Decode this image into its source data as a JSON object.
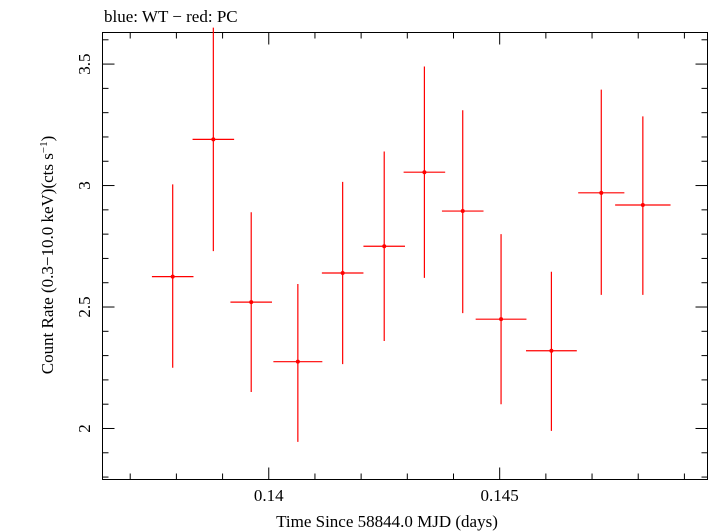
{
  "chart_data": {
    "type": "scatter",
    "title": "blue: WT − red: PC",
    "xlabel": "Time Since 58844.0 MJD (days)",
    "ylabel_main": "Count Rate (0.3−10.0 keV)(cts s",
    "ylabel_sup": "−1",
    "ylabel_close": ")",
    "xlim": [
      0.1364,
      0.1495
    ],
    "ylim": [
      1.79,
      3.63
    ],
    "x_ticks": [
      {
        "value": 0.14,
        "label": "0.14"
      },
      {
        "value": 0.145,
        "label": "0.145"
      }
    ],
    "x_minor_step": 0.001,
    "y_ticks": [
      {
        "value": 2.0,
        "label": "2"
      },
      {
        "value": 2.5,
        "label": "2.5"
      },
      {
        "value": 3.0,
        "label": "3"
      },
      {
        "value": 3.5,
        "label": "3.5"
      }
    ],
    "y_minor_step": 0.1,
    "series": [
      {
        "name": "PC",
        "color": "#ff0000",
        "points": [
          {
            "x": 0.13792,
            "xerr": 0.00045,
            "y": 2.625,
            "ylo": 2.25,
            "yhi": 3.005
          },
          {
            "x": 0.1388,
            "xerr": 0.00045,
            "y": 3.19,
            "ylo": 2.73,
            "yhi": 3.65
          },
          {
            "x": 0.13962,
            "xerr": 0.00045,
            "y": 2.52,
            "ylo": 2.15,
            "yhi": 2.89
          },
          {
            "x": 0.14063,
            "xerr": 0.00053,
            "y": 2.275,
            "ylo": 1.945,
            "yhi": 2.595
          },
          {
            "x": 0.1416,
            "xerr": 0.00045,
            "y": 2.64,
            "ylo": 2.265,
            "yhi": 3.015
          },
          {
            "x": 0.1425,
            "xerr": 0.00045,
            "y": 2.75,
            "ylo": 2.36,
            "yhi": 3.14
          },
          {
            "x": 0.14337,
            "xerr": 0.00045,
            "y": 3.055,
            "ylo": 2.62,
            "yhi": 3.49
          },
          {
            "x": 0.1442,
            "xerr": 0.00045,
            "y": 2.895,
            "ylo": 2.475,
            "yhi": 3.31
          },
          {
            "x": 0.14503,
            "xerr": 0.00055,
            "y": 2.45,
            "ylo": 2.1,
            "yhi": 2.8
          },
          {
            "x": 0.14612,
            "xerr": 0.00055,
            "y": 2.32,
            "ylo": 1.99,
            "yhi": 2.645
          },
          {
            "x": 0.1472,
            "xerr": 0.0005,
            "y": 2.97,
            "ylo": 2.55,
            "yhi": 3.395
          },
          {
            "x": 0.1481,
            "xerr": 0.0006,
            "y": 2.92,
            "ylo": 2.55,
            "yhi": 3.285
          }
        ]
      }
    ]
  }
}
